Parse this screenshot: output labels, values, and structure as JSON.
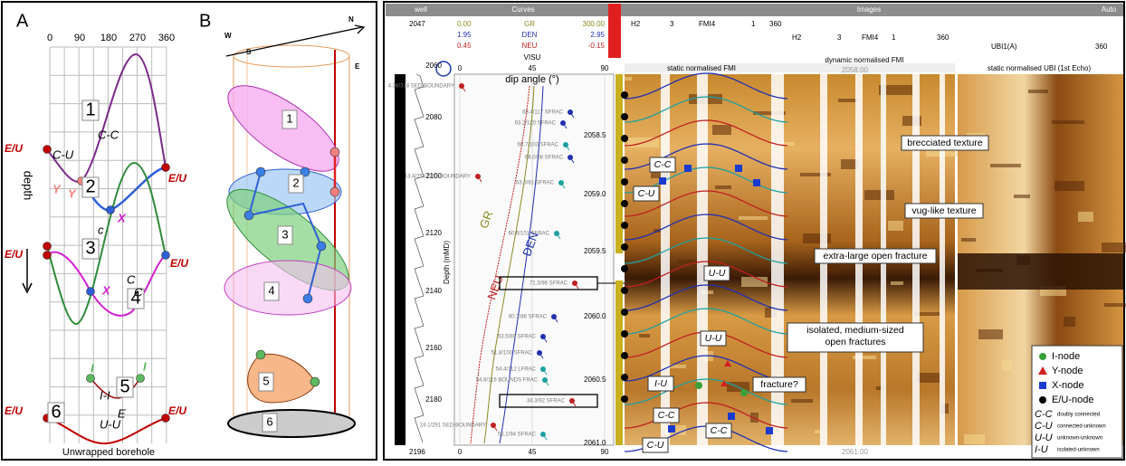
{
  "panel_a": {
    "label": "A",
    "azimuth_ticks": [
      "0",
      "90",
      "180",
      "270",
      "360"
    ],
    "fractures": [
      "1",
      "2",
      "3",
      "4",
      "5",
      "6"
    ],
    "edge_labels": [
      "E/U",
      "E/U",
      "E/U",
      "E/U",
      "E/U",
      "E/U"
    ],
    "connection_labels": [
      "C-U",
      "C-C",
      "c",
      "C",
      "C",
      "I-I",
      "U-U",
      "E"
    ],
    "node_labels": [
      "Y",
      "Y",
      "X",
      "X",
      "I",
      "I"
    ],
    "depth_label": "depth",
    "caption": "Unwrapped borehole"
  },
  "panel_b": {
    "label": "B",
    "directions": [
      "W",
      "S",
      "N",
      "E"
    ],
    "fractures": [
      "1",
      "2",
      "3",
      "4",
      "5",
      "6"
    ]
  },
  "log": {
    "header": [
      "well",
      "Curves",
      "Images",
      "Auto"
    ],
    "depth_top": "2047",
    "depth_bottom": "2196",
    "curves": [
      {
        "min": "0.00",
        "name": "GR",
        "max": "300.00"
      },
      {
        "min": "1.95",
        "name": "DEN",
        "max": "2.95"
      },
      {
        "min": "0.45",
        "name": "NEU",
        "max": "-0.15"
      }
    ],
    "visu": "VISU",
    "image_headers": [
      "H2",
      "3",
      "FMI4",
      "1",
      "360",
      "H2",
      "3",
      "FMI4",
      "1",
      "360",
      "UBI1(A)",
      "360"
    ],
    "track_titles": [
      "static normalised FMI",
      "dynamic normalised FMI",
      "static normalised UBI (1st Echo)"
    ],
    "track_depths": [
      "2058.00",
      "2061.00"
    ],
    "depth_axis_title": "Depth (mMD)",
    "depth_ticks": [
      "2060",
      "2080",
      "2100",
      "2120",
      "2140",
      "2160",
      "2180"
    ],
    "dip_axis_title": "dip angle (°)",
    "dip_ticks_top": [
      "0",
      "45",
      "90"
    ],
    "dip_ticks_bottom": [
      "0",
      "45",
      "90"
    ],
    "curve_labels": [
      "GR",
      "NEU",
      "DEN"
    ],
    "mid_depths": [
      "2058.5",
      "2059.0",
      "2059.5",
      "2060.0",
      "2060.5",
      "2061.0"
    ],
    "dips": [
      "4.36/318 SED-BOUNDARY",
      "68.4/117 SFRAC",
      "63.2/120 SFRAC",
      "60.7/103 SFRAC",
      "68.0/98 SFRAC",
      "13.4/253 SED-BOUNDARY",
      "63.0/81 SFRAC",
      "60.6/101 SFRAC",
      "71.3/96 SFRAC",
      "60.1/86 SFRAC",
      "53.5/89 SFRAC",
      "51.8/100 SFRAC",
      "54.4/112 LFRAC",
      "54.8/116 BOUNDS FRAC",
      "34.3/92 SFRAC",
      "24.1/291 SED-BOUNDARY",
      "55.1/94 SFRAC"
    ],
    "annotations": [
      "brecciated texture",
      "vug-like texture",
      "extra-large open fracture",
      "isolated, medium-sized open fractures",
      "fracture?"
    ],
    "connection_labels": [
      "C-C",
      "C-U",
      "U-U",
      "U-U",
      "I-U",
      "C-C",
      "C-C",
      "C-U"
    ],
    "legend": {
      "nodes": [
        "I-node",
        "Y-node",
        "X-node",
        "E/U-node"
      ],
      "connections": [
        {
          "code": "C-C",
          "meaning": "doubly connected"
        },
        {
          "code": "C-U",
          "meaning": "connected-unknown"
        },
        {
          "code": "U-U",
          "meaning": "unknown-unknown"
        },
        {
          "code": "I-U",
          "meaning": "isolated-unknown"
        }
      ]
    }
  }
}
